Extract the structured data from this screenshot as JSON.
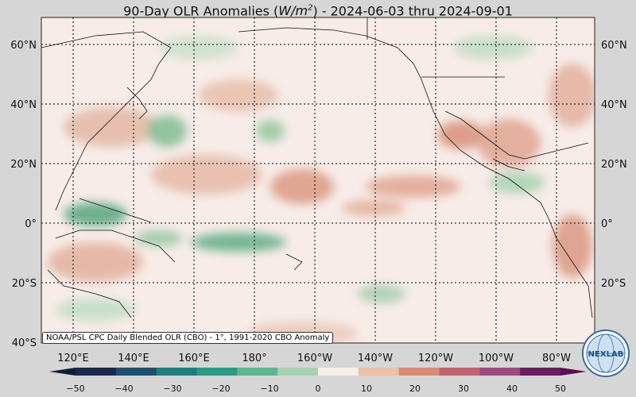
{
  "title": {
    "prefix": "90-Day OLR Anomalies (",
    "unit_base": "W/m",
    "unit_exp": "2",
    "suffix": ") - 2024-06-03 thru 2024-09-01"
  },
  "map": {
    "lat_labels": [
      "60°N",
      "40°N",
      "20°N",
      "0°",
      "20°S",
      "40°S"
    ],
    "lon_labels": [
      "120°E",
      "140°E",
      "160°E",
      "180°",
      "160°W",
      "140°W",
      "120°W",
      "100°W",
      "80°W"
    ]
  },
  "credit": "NOAA/PSL CPC Daily Blended OLR (CBO) - 1°, 1991-2020 CBO Anomaly",
  "colorbar": {
    "ticks": [
      "−50",
      "−40",
      "−30",
      "−20",
      "−10",
      "0",
      "10",
      "20",
      "30",
      "40",
      "50"
    ],
    "colors": [
      "#1a2a4a",
      "#1e4e6e",
      "#1f7f7f",
      "#2a9a84",
      "#5fb592",
      "#a4d2ae",
      "#f6efe9",
      "#edbfa9",
      "#d98a73",
      "#c0646e",
      "#a04a82",
      "#6a1e5e"
    ]
  },
  "logo": {
    "text": "NEXLAB",
    "icon": "globe-icon"
  }
}
